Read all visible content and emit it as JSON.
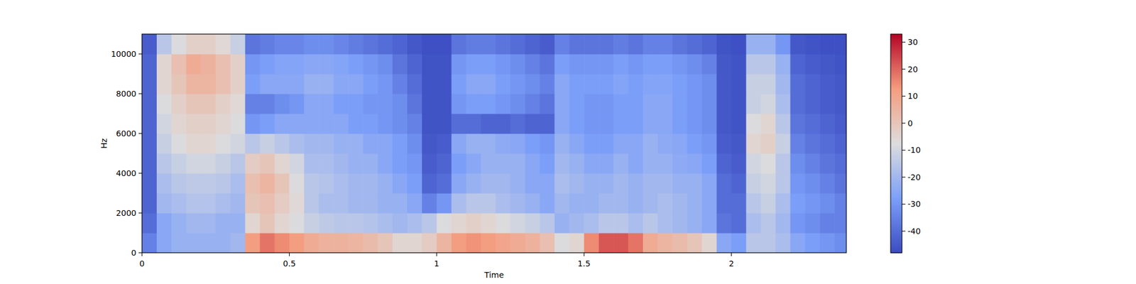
{
  "chart_data": {
    "type": "heatmap",
    "x_label": "Time",
    "y_label": "Hz",
    "xlim": [
      0,
      2.39
    ],
    "xticks": [
      0,
      0.5,
      1,
      1.5,
      2
    ],
    "ylim": [
      0,
      11000
    ],
    "yticks": [
      0,
      2000,
      4000,
      6000,
      8000,
      10000
    ],
    "x": [
      0.025,
      0.075,
      0.125,
      0.175,
      0.225,
      0.275,
      0.325,
      0.375,
      0.425,
      0.475,
      0.525,
      0.575,
      0.625,
      0.675,
      0.725,
      0.775,
      0.825,
      0.875,
      0.925,
      0.975,
      1.025,
      1.075,
      1.125,
      1.175,
      1.225,
      1.275,
      1.325,
      1.375,
      1.425,
      1.475,
      1.525,
      1.575,
      1.625,
      1.675,
      1.725,
      1.775,
      1.825,
      1.875,
      1.925,
      1.975,
      2.025,
      2.075,
      2.125,
      2.175,
      2.225,
      2.275,
      2.325,
      2.375
    ],
    "y": [
      500,
      1500,
      2500,
      3500,
      4500,
      5500,
      6500,
      7500,
      8500,
      9500,
      10500
    ],
    "cells": [
      [
        -35,
        -25,
        -22,
        -22,
        -22,
        -22,
        -20,
        12,
        18,
        15,
        12,
        8,
        6,
        6,
        5,
        3,
        0,
        -5,
        -5,
        -2,
        5,
        12,
        14,
        12,
        10,
        8,
        6,
        2,
        -8,
        -5,
        15,
        22,
        22,
        18,
        8,
        5,
        3,
        0,
        -5,
        -25,
        -28,
        -15,
        -15,
        -18,
        -25,
        -28,
        -30,
        -32
      ],
      [
        -40,
        -25,
        -22,
        -20,
        -20,
        -22,
        -22,
        -5,
        0,
        -5,
        -8,
        -12,
        -14,
        -15,
        -15,
        -16,
        -18,
        -20,
        -18,
        -15,
        -8,
        -5,
        -3,
        -5,
        -8,
        -10,
        -12,
        -15,
        -22,
        -20,
        -18,
        -15,
        -15,
        -18,
        -15,
        -18,
        -20,
        -22,
        -25,
        -38,
        -40,
        -18,
        -15,
        -20,
        -30,
        -32,
        -35,
        -35
      ],
      [
        -42,
        -20,
        -18,
        -16,
        -16,
        -18,
        -20,
        0,
        2,
        -2,
        -6,
        -15,
        -18,
        -18,
        -20,
        -20,
        -22,
        -22,
        -25,
        -35,
        -30,
        -18,
        -15,
        -15,
        -18,
        -20,
        -22,
        -25,
        -20,
        -22,
        -22,
        -20,
        -20,
        -22,
        -20,
        -18,
        -20,
        -22,
        -25,
        -40,
        -40,
        -15,
        -12,
        -18,
        -28,
        -30,
        -32,
        -35
      ],
      [
        -42,
        -18,
        -15,
        -14,
        -14,
        -15,
        -18,
        2,
        5,
        0,
        -8,
        -15,
        -16,
        -18,
        -20,
        -20,
        -22,
        -25,
        -28,
        -42,
        -40,
        -25,
        -22,
        -20,
        -20,
        -22,
        -25,
        -25,
        -18,
        -20,
        -22,
        -22,
        -20,
        -22,
        -20,
        -20,
        -22,
        -22,
        -25,
        -40,
        -42,
        -12,
        -10,
        -15,
        -30,
        -32,
        -35,
        -38
      ],
      [
        -42,
        -15,
        -12,
        -10,
        -10,
        -12,
        -15,
        -2,
        0,
        -5,
        -10,
        -18,
        -18,
        -20,
        -22,
        -22,
        -25,
        -28,
        -30,
        -44,
        -42,
        -28,
        -25,
        -22,
        -22,
        -22,
        -25,
        -28,
        -20,
        -22,
        -25,
        -25,
        -22,
        -25,
        -22,
        -22,
        -24,
        -25,
        -28,
        -42,
        -44,
        -10,
        -8,
        -15,
        -32,
        -35,
        -38,
        -40
      ],
      [
        -42,
        -12,
        -8,
        -5,
        -5,
        -8,
        -10,
        -15,
        -12,
        -15,
        -18,
        -20,
        -20,
        -22,
        -22,
        -25,
        -25,
        -28,
        -32,
        -45,
        -44,
        -25,
        -22,
        -22,
        -24,
        -25,
        -28,
        -30,
        -22,
        -25,
        -28,
        -28,
        -25,
        -25,
        -22,
        -24,
        -25,
        -28,
        -30,
        -44,
        -45,
        -5,
        -3,
        -12,
        -35,
        -38,
        -40,
        -42
      ],
      [
        -42,
        -10,
        -5,
        -3,
        -3,
        -5,
        -8,
        -30,
        -28,
        -25,
        -25,
        -25,
        -25,
        -25,
        -28,
        -28,
        -30,
        -32,
        -35,
        -46,
        -46,
        -40,
        -40,
        -42,
        -42,
        -40,
        -42,
        -42,
        -25,
        -28,
        -30,
        -30,
        -28,
        -28,
        -25,
        -25,
        -28,
        -30,
        -32,
        -45,
        -46,
        -8,
        -5,
        -15,
        -38,
        -40,
        -42,
        -44
      ],
      [
        -42,
        -8,
        -3,
        0,
        0,
        -3,
        -6,
        -35,
        -35,
        -32,
        -30,
        -25,
        -25,
        -28,
        -28,
        -30,
        -30,
        -32,
        -38,
        -46,
        -46,
        -30,
        -28,
        -28,
        -30,
        -32,
        -35,
        -38,
        -25,
        -28,
        -30,
        -30,
        -28,
        -28,
        -25,
        -25,
        -28,
        -30,
        -32,
        -45,
        -46,
        -12,
        -10,
        -18,
        -40,
        -42,
        -44,
        -45
      ],
      [
        -42,
        -5,
        0,
        5,
        5,
        2,
        -3,
        -28,
        -25,
        -25,
        -25,
        -22,
        -22,
        -25,
        -25,
        -28,
        -30,
        -35,
        -40,
        -46,
        -46,
        -28,
        -25,
        -25,
        -28,
        -30,
        -32,
        -35,
        -25,
        -28,
        -28,
        -28,
        -26,
        -28,
        -26,
        -26,
        -28,
        -30,
        -32,
        -45,
        -46,
        -12,
        -12,
        -20,
        -40,
        -42,
        -44,
        -45
      ],
      [
        -42,
        -5,
        2,
        8,
        6,
        2,
        -3,
        -30,
        -28,
        -26,
        -26,
        -25,
        -25,
        -26,
        -28,
        -30,
        -32,
        -38,
        -42,
        -46,
        -46,
        -30,
        -28,
        -28,
        -30,
        -32,
        -35,
        -38,
        -28,
        -30,
        -30,
        -30,
        -28,
        -30,
        -28,
        -28,
        -30,
        -32,
        -35,
        -45,
        -46,
        -15,
        -15,
        -22,
        -42,
        -44,
        -45,
        -46
      ],
      [
        -44,
        -15,
        -8,
        -3,
        -3,
        -6,
        -12,
        -38,
        -36,
        -34,
        -34,
        -32,
        -32,
        -34,
        -36,
        -38,
        -40,
        -42,
        -45,
        -47,
        -47,
        -38,
        -36,
        -36,
        -38,
        -40,
        -42,
        -44,
        -35,
        -38,
        -38,
        -38,
        -36,
        -38,
        -35,
        -35,
        -38,
        -40,
        -42,
        -46,
        -47,
        -22,
        -22,
        -30,
        -45,
        -46,
        -47,
        -47
      ]
    ],
    "colorbar_lim": [
      -48,
      33
    ],
    "colorbar_ticks": [
      -40,
      -30,
      -20,
      -10,
      0,
      10,
      20,
      30
    ]
  }
}
